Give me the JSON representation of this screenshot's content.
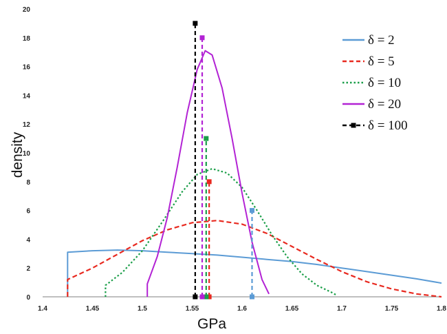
{
  "chart_data": {
    "type": "line",
    "title": "",
    "xlabel": "GPa",
    "ylabel": "density",
    "xlim": [
      1.4,
      1.8
    ],
    "ylim": [
      0,
      20
    ],
    "x_ticks": [
      "1.4",
      "1.45",
      "1.5",
      "1.55",
      "1.6",
      "1.65",
      "1.7",
      "1.75",
      "1.8"
    ],
    "y_ticks": [
      "0",
      "2",
      "4",
      "6",
      "8",
      "10",
      "12",
      "14",
      "16",
      "18",
      "20"
    ],
    "grid": false,
    "legend_position": "top-right",
    "series": [
      {
        "name": "δ = 2",
        "color": "#5b9bd5",
        "style": "solid",
        "points": [
          [
            1.425,
            0.0
          ],
          [
            1.425,
            3.1
          ],
          [
            1.45,
            3.2
          ],
          [
            1.475,
            3.25
          ],
          [
            1.5,
            3.2
          ],
          [
            1.525,
            3.1
          ],
          [
            1.55,
            3.0
          ],
          [
            1.575,
            2.9
          ],
          [
            1.6,
            2.75
          ],
          [
            1.625,
            2.6
          ],
          [
            1.65,
            2.45
          ],
          [
            1.675,
            2.25
          ],
          [
            1.7,
            2.0
          ],
          [
            1.725,
            1.75
          ],
          [
            1.75,
            1.5
          ],
          [
            1.775,
            1.25
          ],
          [
            1.8,
            0.95
          ]
        ],
        "marker_x": 1.61,
        "marker_y": 6.0
      },
      {
        "name": "δ = 5",
        "color": "#e8291f",
        "style": "dashed",
        "points": [
          [
            1.425,
            0.0
          ],
          [
            1.425,
            1.2
          ],
          [
            1.45,
            2.0
          ],
          [
            1.475,
            2.95
          ],
          [
            1.5,
            3.9
          ],
          [
            1.525,
            4.65
          ],
          [
            1.55,
            5.15
          ],
          [
            1.575,
            5.3
          ],
          [
            1.6,
            5.05
          ],
          [
            1.625,
            4.4
          ],
          [
            1.65,
            3.5
          ],
          [
            1.675,
            2.6
          ],
          [
            1.7,
            1.75
          ],
          [
            1.725,
            1.05
          ],
          [
            1.75,
            0.55
          ],
          [
            1.775,
            0.2
          ],
          [
            1.8,
            0.0
          ]
        ],
        "marker_x": 1.567,
        "marker_y": 8.0
      },
      {
        "name": "δ = 10",
        "color": "#1a9e48",
        "style": "dotted",
        "points": [
          [
            1.463,
            0.0
          ],
          [
            1.463,
            0.8
          ],
          [
            1.48,
            1.7
          ],
          [
            1.5,
            3.2
          ],
          [
            1.52,
            5.2
          ],
          [
            1.54,
            7.3
          ],
          [
            1.555,
            8.5
          ],
          [
            1.57,
            8.9
          ],
          [
            1.585,
            8.6
          ],
          [
            1.6,
            7.6
          ],
          [
            1.615,
            6.0
          ],
          [
            1.63,
            4.3
          ],
          [
            1.645,
            2.8
          ],
          [
            1.66,
            1.6
          ],
          [
            1.675,
            0.8
          ],
          [
            1.69,
            0.3
          ],
          [
            1.695,
            0.1
          ]
        ],
        "marker_x": 1.564,
        "marker_y": 11.0
      },
      {
        "name": "δ = 20",
        "color": "#b222d4",
        "style": "solid",
        "points": [
          [
            1.505,
            0.0
          ],
          [
            1.505,
            0.9
          ],
          [
            1.515,
            2.8
          ],
          [
            1.525,
            5.5
          ],
          [
            1.535,
            9.0
          ],
          [
            1.545,
            12.8
          ],
          [
            1.555,
            15.8
          ],
          [
            1.563,
            17.1
          ],
          [
            1.57,
            16.8
          ],
          [
            1.58,
            14.5
          ],
          [
            1.59,
            11.0
          ],
          [
            1.6,
            7.2
          ],
          [
            1.61,
            3.8
          ],
          [
            1.62,
            1.2
          ],
          [
            1.627,
            0.2
          ]
        ],
        "marker_x": 1.56,
        "marker_y": 18.0
      },
      {
        "name": "δ = 100",
        "color": "#000000",
        "style": "dashed",
        "points": [],
        "marker_x": 1.553,
        "marker_y": 19.0
      }
    ]
  }
}
